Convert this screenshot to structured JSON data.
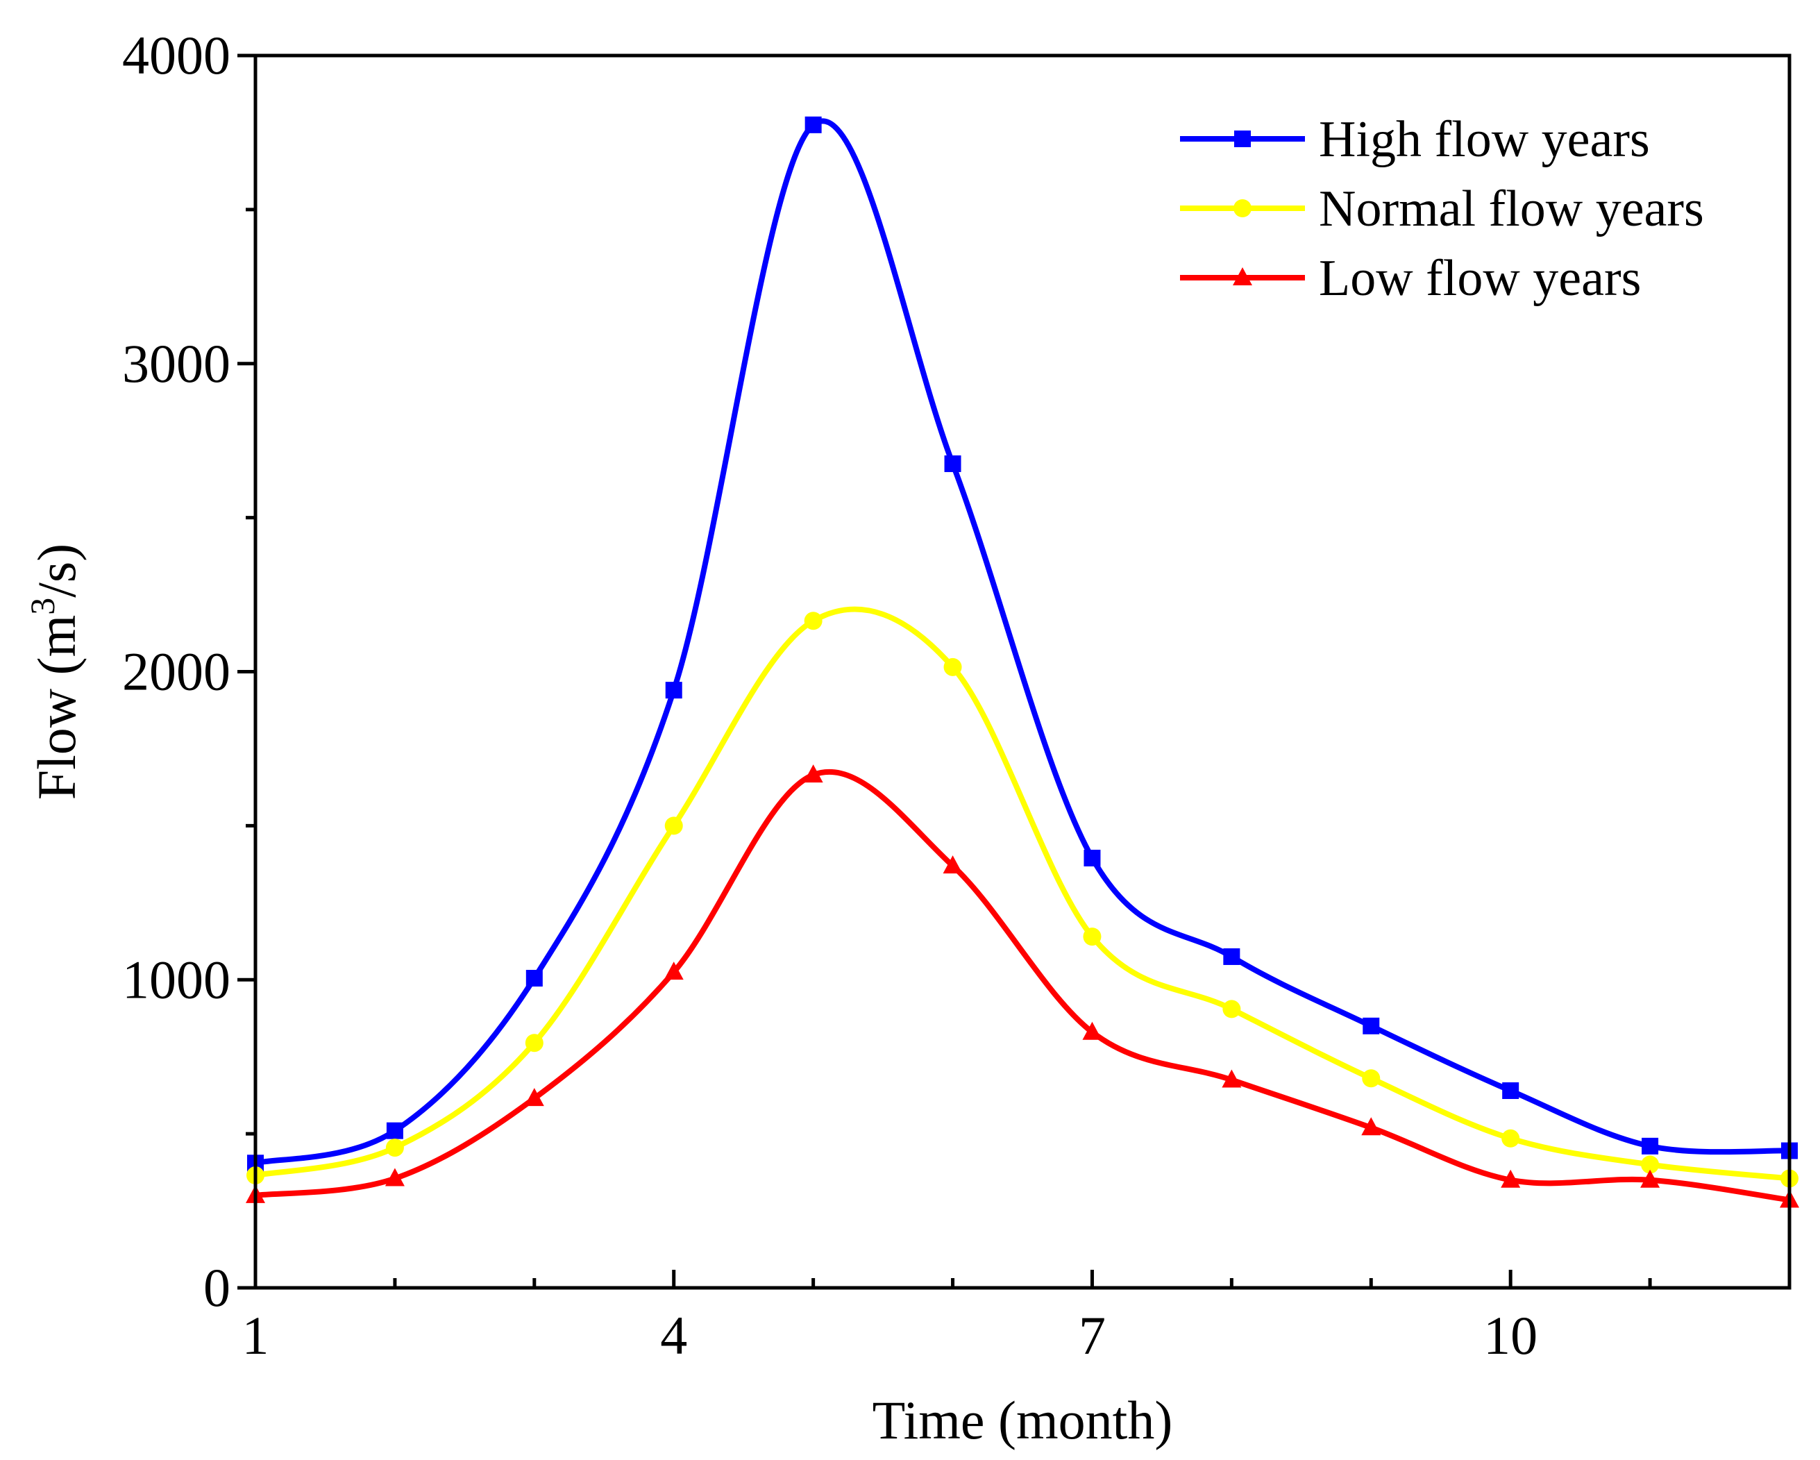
{
  "chart_data": {
    "type": "line",
    "title": "",
    "xlabel": "Time (month)",
    "ylabel": {
      "prefix": "Flow (m",
      "sup": "3",
      "suffix": "/s)"
    },
    "xlim": [
      1,
      12
    ],
    "ylim": [
      0,
      4000
    ],
    "xticks_labeled": [
      1,
      4,
      7,
      10
    ],
    "xticks_minor": [
      2,
      3,
      5,
      6,
      8,
      9,
      11
    ],
    "yticks_labeled": [
      0,
      1000,
      2000,
      3000,
      4000
    ],
    "yticks_minor": [
      500,
      1500,
      2500,
      3500
    ],
    "grid": false,
    "legend_position": "top-right",
    "smooth": true,
    "x": [
      1,
      2,
      3,
      4,
      5,
      6,
      7,
      8,
      9,
      10,
      11,
      12
    ],
    "series": [
      {
        "name": "High flow years",
        "color": "#0000ff",
        "marker": "square",
        "values": [
          405,
          510,
          1005,
          1940,
          3775,
          2675,
          1395,
          1075,
          850,
          640,
          460,
          445
        ]
      },
      {
        "name": "Normal flow years",
        "color": "#ffff00",
        "marker": "circle",
        "values": [
          365,
          455,
          795,
          1500,
          2165,
          2015,
          1140,
          905,
          680,
          485,
          400,
          355
        ]
      },
      {
        "name": "Low flow years",
        "color": "#ff0000",
        "marker": "triangle",
        "values": [
          300,
          355,
          615,
          1025,
          1665,
          1370,
          830,
          675,
          520,
          350,
          350,
          285
        ]
      }
    ]
  }
}
